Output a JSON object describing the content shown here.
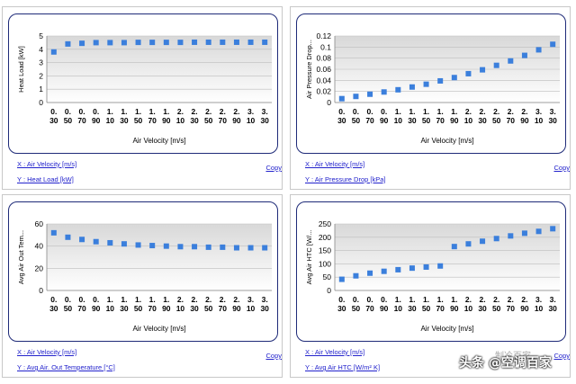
{
  "common_xticks": [
    "0.30",
    "0.50",
    "0.70",
    "0.90",
    "1.10",
    "1.30",
    "1.50",
    "1.70",
    "1.90",
    "2.10",
    "2.30",
    "2.50",
    "2.70",
    "2.90",
    "3.10",
    "3.30"
  ],
  "copy_label": "Copy",
  "watermark": "头条 @空调百家",
  "watermark_sub": "制冷百家",
  "chart_data": [
    {
      "type": "scatter",
      "title": "",
      "xlabel": "Air Velocity [m/s]",
      "ylabel": "Heat Load [kW]",
      "ylim": [
        0,
        5
      ],
      "yticks": [
        "0",
        "1",
        "2",
        "3",
        "4",
        "5"
      ],
      "x": [
        0.3,
        0.5,
        0.7,
        0.9,
        1.1,
        1.3,
        1.5,
        1.7,
        1.9,
        2.1,
        2.3,
        2.5,
        2.7,
        2.9,
        3.1,
        3.3
      ],
      "values": [
        3.8,
        4.4,
        4.45,
        4.5,
        4.5,
        4.5,
        4.52,
        4.52,
        4.52,
        4.52,
        4.53,
        4.53,
        4.53,
        4.53,
        4.53,
        4.53
      ],
      "color": "#3b7fdc",
      "x_link": "X : Air Velocity [m/s]",
      "y_link": "Y : Heat Load [kW]"
    },
    {
      "type": "scatter",
      "title": "",
      "xlabel": "Air Velocity [m/s]",
      "ylabel": "Air Pressure Drop...",
      "ylim": [
        0,
        0.12
      ],
      "yticks": [
        "0",
        "0.02",
        "0.04",
        "0.06",
        "0.08",
        "0.1",
        "0.12"
      ],
      "x": [
        0.3,
        0.5,
        0.7,
        0.9,
        1.1,
        1.3,
        1.5,
        1.7,
        1.9,
        2.1,
        2.3,
        2.5,
        2.7,
        2.9,
        3.1,
        3.3
      ],
      "values": [
        0.007,
        0.011,
        0.015,
        0.019,
        0.023,
        0.028,
        0.033,
        0.039,
        0.045,
        0.052,
        0.059,
        0.067,
        0.075,
        0.085,
        0.095,
        0.105
      ],
      "color": "#3b7fdc",
      "x_link": "X : Air Velocity [m/s]",
      "y_link": "Y : Air Pressure Drop [kPa]"
    },
    {
      "type": "scatter",
      "title": "",
      "xlabel": "Air Velocity [m/s]",
      "ylabel": "Avg Air Out Tem...",
      "ylim": [
        0,
        60
      ],
      "yticks": [
        "0",
        "20",
        "40",
        "60"
      ],
      "x": [
        0.3,
        0.5,
        0.7,
        0.9,
        1.1,
        1.3,
        1.5,
        1.7,
        1.9,
        2.1,
        2.3,
        2.5,
        2.7,
        2.9,
        3.1,
        3.3
      ],
      "values": [
        52,
        48,
        46,
        44,
        43,
        42,
        41,
        40.5,
        40,
        39.5,
        39.5,
        39,
        39,
        38.5,
        38.5,
        38.5
      ],
      "color": "#3b7fdc",
      "x_link": "X : Air Velocity [m/s]",
      "y_link": "Y : Avg Air. Out Temperature [°C]"
    },
    {
      "type": "scatter",
      "title": "",
      "xlabel": "Air Velocity [m/s]",
      "ylabel": "Avg Air HTC [W/...",
      "ylim": [
        0,
        250
      ],
      "yticks": [
        "0",
        "50",
        "100",
        "150",
        "200",
        "250"
      ],
      "x": [
        0.3,
        0.5,
        0.7,
        0.9,
        1.1,
        1.3,
        1.5,
        1.7,
        1.9,
        2.1,
        2.3,
        2.5,
        2.7,
        2.9,
        3.1,
        3.3
      ],
      "values": [
        42,
        55,
        65,
        72,
        78,
        84,
        88,
        92,
        165,
        175,
        185,
        195,
        205,
        215,
        222,
        232
      ],
      "color": "#3b7fdc",
      "x_link": "X : Air Velocity [m/s]",
      "y_link": "Y : Avg Air HTC [W/m² K]"
    }
  ]
}
